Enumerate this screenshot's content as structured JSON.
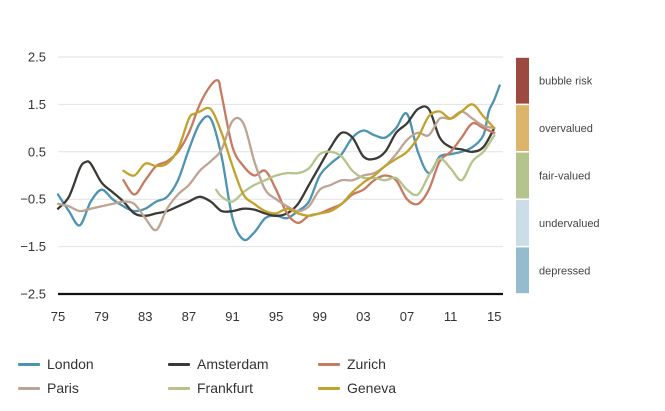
{
  "chart_data": {
    "type": "line",
    "title": "",
    "xlabel": "",
    "ylabel": "",
    "x_ticks": [
      "75",
      "79",
      "83",
      "87",
      "91",
      "95",
      "99",
      "03",
      "07",
      "11",
      "15"
    ],
    "x_tick_years": [
      1975,
      1979,
      1983,
      1987,
      1991,
      1995,
      1999,
      2003,
      2007,
      2011,
      2015
    ],
    "xlim": [
      1975,
      2015.8
    ],
    "y_ticks": [
      "2.5",
      "1.5",
      "0.5",
      "-0.5",
      "-1.5",
      "-2.5"
    ],
    "ylim": [
      -2.5,
      2.5
    ],
    "grid": true,
    "valuation_bands": [
      {
        "label": "bubble risk",
        "from": 1.5,
        "to": 2.5,
        "color": "#9c4a40"
      },
      {
        "label": "overvalued",
        "from": 0.5,
        "to": 1.5,
        "color": "#dcb56a"
      },
      {
        "label": "fair-valued",
        "from": -0.5,
        "to": 0.5,
        "color": "#b4c48c"
      },
      {
        "label": "undervalued",
        "from": -1.5,
        "to": -0.5,
        "color": "#cbdde7"
      },
      {
        "label": "depressed",
        "from": -2.5,
        "to": -1.5,
        "color": "#94bccd"
      }
    ],
    "series": [
      {
        "name": "London",
        "color": "#4d93b3",
        "x": [
          1975,
          1976,
          1977,
          1978,
          1979,
          1980,
          1981,
          1982,
          1983,
          1984,
          1985,
          1986,
          1987,
          1988,
          1989,
          1990,
          1991,
          1992,
          1993,
          1994,
          1995,
          1996,
          1997,
          1998,
          1999,
          2000,
          2001,
          2002,
          2003,
          2004,
          2005,
          2006,
          2007,
          2008,
          2009,
          2010,
          2011,
          2012,
          2013,
          2014,
          2014.5,
          2015,
          2015.5
        ],
        "y": [
          -0.4,
          -0.75,
          -1.05,
          -0.55,
          -0.3,
          -0.5,
          -0.65,
          -0.75,
          -0.7,
          -0.55,
          -0.45,
          -0.1,
          0.55,
          1.1,
          1.2,
          0.4,
          -0.9,
          -1.35,
          -1.2,
          -0.9,
          -0.85,
          -0.9,
          -0.75,
          -0.55,
          0.0,
          0.25,
          0.45,
          0.8,
          0.95,
          0.85,
          0.8,
          1.0,
          1.3,
          0.5,
          0.05,
          0.4,
          0.45,
          0.5,
          0.6,
          0.85,
          1.35,
          1.6,
          1.9
        ]
      },
      {
        "name": "Amsterdam",
        "color": "#3c3a36",
        "x": [
          1975,
          1976,
          1977,
          1977.5,
          1978,
          1979,
          1980,
          1981,
          1982,
          1983,
          1984,
          1985,
          1986,
          1987,
          1988,
          1989,
          1990,
          1991,
          1992,
          1993,
          1994,
          1995,
          1996,
          1997,
          1998,
          1999,
          2000,
          2001,
          2002,
          2003,
          2004,
          2005,
          2006,
          2007,
          2008,
          2009,
          2010,
          2011,
          2012,
          2013,
          2014,
          2015
        ],
        "y": [
          -0.7,
          -0.45,
          0.15,
          0.28,
          0.25,
          -0.15,
          -0.35,
          -0.55,
          -0.8,
          -0.85,
          -0.8,
          -0.75,
          -0.65,
          -0.55,
          -0.45,
          -0.55,
          -0.75,
          -0.75,
          -0.7,
          -0.72,
          -0.8,
          -0.85,
          -0.8,
          -0.6,
          -0.2,
          0.2,
          0.6,
          0.9,
          0.8,
          0.4,
          0.35,
          0.5,
          0.9,
          1.1,
          1.4,
          1.4,
          0.8,
          0.6,
          0.55,
          0.5,
          0.6,
          1.0
        ]
      },
      {
        "name": "Zurich",
        "color": "#c67a60",
        "x": [
          1981,
          1982,
          1983,
          1984,
          1985,
          1986,
          1987,
          1988,
          1989,
          1989.7,
          1990,
          1991,
          1992,
          1993,
          1994,
          1995,
          1996,
          1997,
          1998,
          1999,
          2000,
          2001,
          2002,
          2003,
          2004,
          2005,
          2006,
          2007,
          2008,
          2009,
          2010,
          2011,
          2012,
          2013,
          2014,
          2015
        ],
        "y": [
          -0.1,
          -0.4,
          -0.1,
          0.2,
          0.3,
          0.5,
          0.9,
          1.5,
          1.9,
          2.0,
          1.7,
          0.6,
          0.2,
          0.0,
          0.1,
          -0.3,
          -0.8,
          -1.0,
          -0.85,
          -0.8,
          -0.7,
          -0.6,
          -0.4,
          -0.3,
          -0.1,
          0.0,
          -0.1,
          -0.5,
          -0.6,
          -0.3,
          0.3,
          0.5,
          0.8,
          1.1,
          1.0,
          0.9
        ]
      },
      {
        "name": "Paris",
        "color": "#bea493",
        "x": [
          1975,
          1976,
          1977,
          1978,
          1979,
          1980,
          1981,
          1982,
          1983,
          1984,
          1985,
          1986,
          1987,
          1988,
          1989,
          1990,
          1991,
          1992,
          1993,
          1994,
          1995,
          1996,
          1997,
          1998,
          1999,
          2000,
          2001,
          2002,
          2003,
          2004,
          2005,
          2006,
          2007,
          2008,
          2009,
          2010,
          2011,
          2012,
          2013,
          2014,
          2015
        ],
        "y": [
          -0.6,
          -0.65,
          -0.75,
          -0.7,
          -0.65,
          -0.6,
          -0.55,
          -0.6,
          -0.9,
          -1.15,
          -0.7,
          -0.4,
          -0.2,
          0.1,
          0.3,
          0.55,
          1.15,
          1.1,
          0.3,
          -0.3,
          -0.5,
          -0.65,
          -0.75,
          -0.65,
          -0.3,
          -0.2,
          -0.1,
          -0.1,
          0.0,
          0.05,
          0.2,
          0.45,
          0.75,
          0.9,
          0.85,
          1.2,
          1.2,
          1.35,
          1.2,
          1.05,
          1.0
        ]
      },
      {
        "name": "Frankfurt",
        "color": "#b4c48c",
        "x": [
          1989.5,
          1990,
          1991,
          1992,
          1993,
          1994,
          1995,
          1996,
          1997,
          1998,
          1999,
          2000,
          2001,
          2002,
          2003,
          2004,
          2005,
          2006,
          2007,
          2008,
          2009,
          2010,
          2011,
          2012,
          2013,
          2014,
          2015
        ],
        "y": [
          -0.3,
          -0.45,
          -0.55,
          -0.35,
          -0.2,
          -0.1,
          0.0,
          0.05,
          0.05,
          0.15,
          0.45,
          0.5,
          0.4,
          0.1,
          -0.05,
          -0.05,
          -0.1,
          -0.05,
          -0.3,
          -0.4,
          0.0,
          0.35,
          0.15,
          -0.1,
          0.3,
          0.5,
          0.85
        ]
      },
      {
        "name": "Geneva",
        "color": "#c2a22e",
        "x": [
          1981,
          1982,
          1983,
          1984,
          1985,
          1986,
          1987,
          1987.5,
          1988,
          1989,
          1990,
          1991,
          1992,
          1993,
          1994,
          1995,
          1996,
          1997,
          1998,
          1999,
          2000,
          2001,
          2002,
          2003,
          2004,
          2005,
          2006,
          2007,
          2008,
          2009,
          2010,
          2011,
          2012,
          2013,
          2014,
          2015
        ],
        "y": [
          0.1,
          0.0,
          0.25,
          0.2,
          0.25,
          0.55,
          1.2,
          1.3,
          1.35,
          1.4,
          0.9,
          0.2,
          -0.4,
          -0.6,
          -0.75,
          -0.8,
          -0.7,
          -0.8,
          -0.85,
          -0.8,
          -0.75,
          -0.6,
          -0.35,
          -0.15,
          0.0,
          0.2,
          0.35,
          0.5,
          0.8,
          1.25,
          1.35,
          1.2,
          1.35,
          1.5,
          1.25,
          1.0
        ]
      }
    ]
  }
}
